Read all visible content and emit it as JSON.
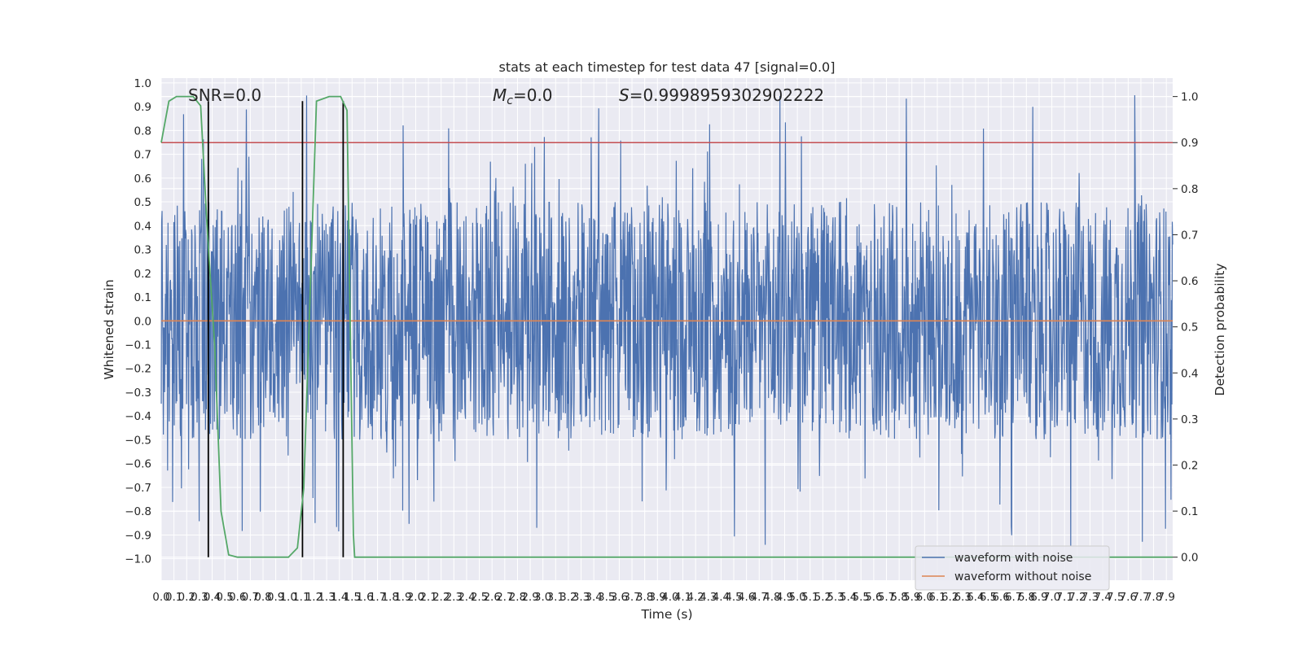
{
  "chart_data": {
    "type": "line",
    "title": "stats at each timestep for test data 47 [signal=0.0]",
    "xlabel": "Time (s)",
    "ylabel": "Whitened strain",
    "y2label": "Detection probability",
    "xlim": [
      0.0,
      7.95
    ],
    "ylim": [
      -1.09,
      1.02
    ],
    "y2lim": [
      -0.05,
      1.04
    ],
    "x_ticks": [
      "0.0",
      "0.1",
      "0.2",
      "0.3",
      "0.4",
      "0.5",
      "0.6",
      "0.7",
      "0.8",
      "0.9",
      "1.0",
      "1.1",
      "1.2",
      "1.3",
      "1.4",
      "1.5",
      "1.6",
      "1.7",
      "1.8",
      "1.9",
      "2.0",
      "2.1",
      "2.2",
      "2.3",
      "2.4",
      "2.5",
      "2.6",
      "2.7",
      "2.8",
      "2.9",
      "3.0",
      "3.1",
      "3.2",
      "3.3",
      "3.4",
      "3.5",
      "3.6",
      "3.7",
      "3.8",
      "3.9",
      "4.0",
      "4.1",
      "4.2",
      "4.3",
      "4.4",
      "4.5",
      "4.6",
      "4.7",
      "4.8",
      "4.9",
      "5.0",
      "5.1",
      "5.2",
      "5.3",
      "5.4",
      "5.5",
      "5.6",
      "5.7",
      "5.8",
      "5.9",
      "6.0",
      "6.1",
      "6.2",
      "6.3",
      "6.4",
      "6.5",
      "6.6",
      "6.7",
      "6.8",
      "6.9",
      "7.0",
      "7.1",
      "7.2",
      "7.3",
      "7.4",
      "7.5",
      "7.6",
      "7.7",
      "7.8",
      "7.9"
    ],
    "y_ticks": [
      "1.0",
      "0.9",
      "0.8",
      "0.7",
      "0.6",
      "0.5",
      "0.4",
      "0.3",
      "0.2",
      "0.1",
      "0.0",
      "-0.1",
      "-0.2",
      "-0.3",
      "-0.4",
      "-0.5",
      "-0.6",
      "-0.7",
      "-0.8",
      "-0.9",
      "-1.0"
    ],
    "y2_ticks": [
      "1.0",
      "0.9",
      "0.8",
      "0.7",
      "0.6",
      "0.5",
      "0.4",
      "0.3",
      "0.2",
      "0.1",
      "0.0"
    ],
    "annotations": [
      {
        "text": "SNR=0.0"
      },
      {
        "text_prefix": "M",
        "text_sub": "c",
        "text_suffix": "=0.0"
      },
      {
        "text_prefix": "S",
        "text_suffix": "=0.9998959302902222"
      }
    ],
    "series": [
      {
        "name": "waveform with noise",
        "color": "#4c72b0",
        "axis": "left",
        "kind": "noise",
        "x_start": 0.0,
        "x_end": 7.95,
        "typical_amplitude": 0.5,
        "max_amplitude": 0.95
      },
      {
        "name": "waveform without noise",
        "color": "#dd8452",
        "axis": "left",
        "x": [
          0.0,
          7.95
        ],
        "y": [
          0.0,
          0.0
        ]
      },
      {
        "color": "#55a868",
        "axis": "right",
        "x": [
          0.0,
          0.06,
          0.12,
          0.25,
          0.31,
          0.36,
          0.42,
          0.47,
          0.53,
          0.6,
          1.0,
          1.07,
          1.12,
          1.22,
          1.32,
          1.41,
          1.46,
          1.51,
          1.52,
          7.95
        ],
        "y": [
          0.9,
          0.99,
          1.0,
          1.0,
          0.98,
          0.72,
          0.46,
          0.1,
          0.005,
          0.0,
          0.0,
          0.02,
          0.15,
          0.99,
          1.0,
          1.0,
          0.97,
          0.05,
          0.0,
          0.0
        ]
      }
    ],
    "threshold": {
      "axis": "right",
      "value": 0.9,
      "color": "#c44e52"
    },
    "vlines": {
      "x": [
        0.37,
        1.11,
        1.43
      ],
      "color": "#000000",
      "y2_range": [
        0.0,
        0.99
      ]
    },
    "legend": {
      "placement": "lower-right"
    },
    "grid": true
  }
}
